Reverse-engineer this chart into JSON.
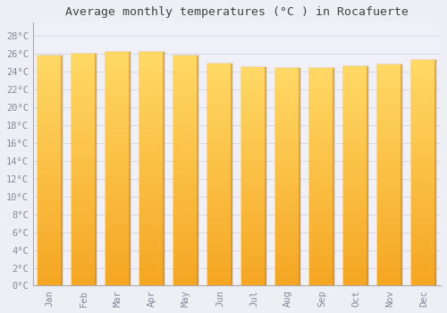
{
  "months": [
    "Jan",
    "Feb",
    "Mar",
    "Apr",
    "May",
    "Jun",
    "Jul",
    "Aug",
    "Sep",
    "Oct",
    "Nov",
    "Dec"
  ],
  "values": [
    25.8,
    26.0,
    26.2,
    26.2,
    25.8,
    24.9,
    24.5,
    24.4,
    24.4,
    24.6,
    24.8,
    25.3
  ],
  "bar_color_bottom": "#F5A623",
  "bar_color_top": "#FFD966",
  "bar_edge_color": "#C8841A",
  "title": "Average monthly temperatures (°C ) in Rocafuerte",
  "ytick_labels": [
    "0°C",
    "2°C",
    "4°C",
    "6°C",
    "8°C",
    "10°C",
    "12°C",
    "14°C",
    "16°C",
    "18°C",
    "20°C",
    "22°C",
    "24°C",
    "26°C",
    "28°C"
  ],
  "ytick_values": [
    0,
    2,
    4,
    6,
    8,
    10,
    12,
    14,
    16,
    18,
    20,
    22,
    24,
    26,
    28
  ],
  "ylim": [
    0,
    29.5
  ],
  "background_color": "#eeeef5",
  "plot_bg_color": "#f0f0f8",
  "grid_color": "#d8d8e8",
  "title_fontsize": 9.5,
  "tick_fontsize": 7.5,
  "font_family": "monospace",
  "tick_color": "#888899",
  "title_color": "#444444"
}
